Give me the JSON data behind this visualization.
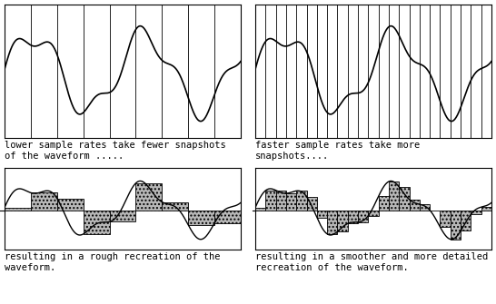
{
  "bg_color": "#ffffff",
  "box_color": "#000000",
  "wave_color": "#000000",
  "sample_line_color": "#000000",
  "bar_fill_color": "#b8b8b8",
  "bar_edge_color": "#000000",
  "top_left_caption": "lower sample rates take fewer snapshots\nof the waveform .....",
  "top_right_caption": "faster sample rates take more\nsnapshots....",
  "bot_left_caption": "resulting in a rough recreation of the\nwaveform.",
  "bot_right_caption": "resulting in a smoother and more detailed\nrecreation of the waveform.",
  "few_samples": 10,
  "many_samples": 24,
  "font_size": 7.5,
  "caption_font_size": 7.5
}
